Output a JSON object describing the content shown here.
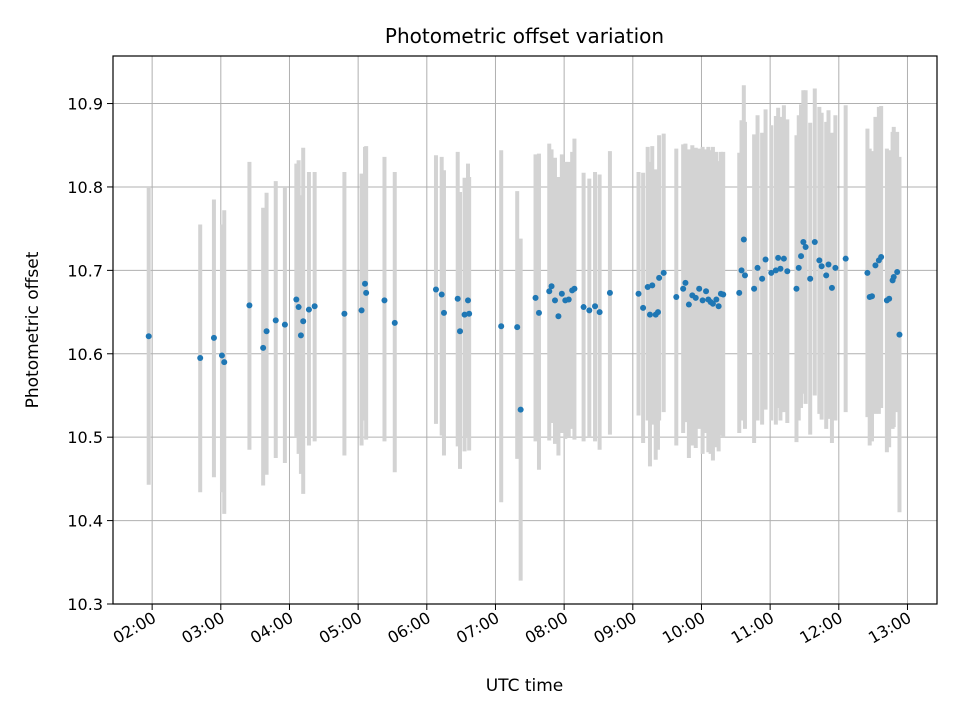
{
  "chart_data": {
    "type": "scatter",
    "title": "Photometric offset variation",
    "xlabel": "UTC time",
    "ylabel": "Photometric offset",
    "ylim": [
      10.3,
      10.957
    ],
    "xlim_hours": [
      1.43,
      13.43
    ],
    "x_tick_labels": [
      "02:00",
      "03:00",
      "04:00",
      "05:00",
      "06:00",
      "07:00",
      "08:00",
      "09:00",
      "10:00",
      "11:00",
      "12:00",
      "13:00"
    ],
    "y_tick_labels": [
      "10.3",
      "10.4",
      "10.5",
      "10.6",
      "10.7",
      "10.8",
      "10.9"
    ],
    "grid": true,
    "marker_color": "#1f77b4",
    "errorbar_color": "#d3d3d3",
    "points": [
      [
        "01:57",
        10.621,
        10.443,
        10.8
      ],
      [
        "02:42",
        10.595,
        10.434,
        10.755
      ],
      [
        "02:54",
        10.619,
        10.452,
        10.785
      ],
      [
        "03:01",
        10.598,
        10.434,
        10.755
      ],
      [
        "03:03",
        10.59,
        10.408,
        10.772
      ],
      [
        "03:25",
        10.658,
        10.485,
        10.83
      ],
      [
        "03:37",
        10.607,
        10.442,
        10.775
      ],
      [
        "03:40",
        10.627,
        10.455,
        10.793
      ],
      [
        "03:48",
        10.64,
        10.475,
        10.807
      ],
      [
        "03:56",
        10.635,
        10.469,
        10.8
      ],
      [
        "04:06",
        10.665,
        10.5,
        10.828
      ],
      [
        "04:08",
        10.656,
        10.48,
        10.832
      ],
      [
        "04:10",
        10.622,
        10.456,
        10.79
      ],
      [
        "04:12",
        10.639,
        10.432,
        10.847
      ],
      [
        "04:17",
        10.653,
        10.49,
        10.818
      ],
      [
        "04:22",
        10.657,
        10.495,
        10.818
      ],
      [
        "04:48",
        10.648,
        10.478,
        10.818
      ],
      [
        "05:03",
        10.652,
        10.49,
        10.816
      ],
      [
        "05:06",
        10.684,
        10.52,
        10.848
      ],
      [
        "05:07",
        10.673,
        10.497,
        10.849
      ],
      [
        "05:23",
        10.664,
        10.495,
        10.836
      ],
      [
        "05:32",
        10.637,
        10.458,
        10.818
      ],
      [
        "06:08",
        10.677,
        10.516,
        10.838
      ],
      [
        "06:13",
        10.671,
        10.502,
        10.836
      ],
      [
        "06:15",
        10.649,
        10.478,
        10.82
      ],
      [
        "06:27",
        10.666,
        10.489,
        10.842
      ],
      [
        "06:29",
        10.627,
        10.462,
        10.794
      ],
      [
        "06:33",
        10.647,
        10.483,
        10.811
      ],
      [
        "06:36",
        10.664,
        10.5,
        10.828
      ],
      [
        "06:37",
        10.648,
        10.484,
        10.812
      ],
      [
        "07:05",
        10.633,
        10.422,
        10.844
      ],
      [
        "07:19",
        10.632,
        10.474,
        10.795
      ],
      [
        "07:22",
        10.533,
        10.328,
        10.738
      ],
      [
        "07:35",
        10.667,
        10.495,
        10.839
      ],
      [
        "07:38",
        10.649,
        10.461,
        10.84
      ],
      [
        "07:47",
        10.675,
        10.496,
        10.852
      ],
      [
        "07:49",
        10.681,
        10.517,
        10.845
      ],
      [
        "07:52",
        10.664,
        10.492,
        10.835
      ],
      [
        "07:55",
        10.645,
        10.478,
        10.812
      ],
      [
        "07:58",
        10.672,
        10.505,
        10.839
      ],
      [
        "08:01",
        10.664,
        10.498,
        10.83
      ],
      [
        "08:04",
        10.665,
        10.5,
        10.83
      ],
      [
        "08:07",
        10.676,
        10.51,
        10.842
      ],
      [
        "08:09",
        10.678,
        10.497,
        10.858
      ],
      [
        "08:17",
        10.656,
        10.495,
        10.817
      ],
      [
        "08:22",
        10.652,
        10.5,
        10.81
      ],
      [
        "08:27",
        10.657,
        10.495,
        10.818
      ],
      [
        "08:31",
        10.65,
        10.485,
        10.815
      ],
      [
        "08:40",
        10.673,
        10.503,
        10.843
      ],
      [
        "09:05",
        10.672,
        10.526,
        10.818
      ],
      [
        "09:09",
        10.655,
        10.493,
        10.817
      ],
      [
        "09:13",
        10.68,
        10.52,
        10.848
      ],
      [
        "09:15",
        10.647,
        10.465,
        10.83
      ],
      [
        "09:17",
        10.682,
        10.515,
        10.849
      ],
      [
        "09:20",
        10.647,
        10.473,
        10.821
      ],
      [
        "09:22",
        10.65,
        10.485,
        10.815
      ],
      [
        "09:23",
        10.691,
        10.52,
        10.862
      ],
      [
        "09:27",
        10.697,
        10.53,
        10.864
      ],
      [
        "09:38",
        10.668,
        10.49,
        10.846
      ],
      [
        "09:44",
        10.678,
        10.505,
        10.851
      ],
      [
        "09:46",
        10.685,
        10.518,
        10.852
      ],
      [
        "09:49",
        10.659,
        10.475,
        10.845
      ],
      [
        "09:52",
        10.67,
        10.49,
        10.85
      ],
      [
        "09:55",
        10.667,
        10.487,
        10.847
      ],
      [
        "09:58",
        10.678,
        10.51,
        10.846
      ],
      [
        "10:01",
        10.664,
        10.48,
        10.848
      ],
      [
        "10:04",
        10.675,
        10.505,
        10.845
      ],
      [
        "10:06",
        10.665,
        10.482,
        10.848
      ],
      [
        "10:08",
        10.662,
        10.48,
        10.844
      ],
      [
        "10:10",
        10.66,
        10.472,
        10.848
      ],
      [
        "10:13",
        10.665,
        10.488,
        10.842
      ],
      [
        "10:15",
        10.657,
        10.483,
        10.831
      ],
      [
        "10:17",
        10.672,
        10.502,
        10.842
      ],
      [
        "10:19",
        10.671,
        10.5,
        10.842
      ],
      [
        "10:33",
        10.673,
        10.505,
        10.841
      ],
      [
        "10:35",
        10.7,
        10.52,
        10.88
      ],
      [
        "10:37",
        10.737,
        10.553,
        10.922
      ],
      [
        "10:38",
        10.694,
        10.51,
        10.878
      ],
      [
        "10:46",
        10.678,
        10.493,
        10.863
      ],
      [
        "10:49",
        10.703,
        10.52,
        10.886
      ],
      [
        "10:53",
        10.69,
        10.515,
        10.865
      ],
      [
        "10:56",
        10.713,
        10.533,
        10.893
      ],
      [
        "11:01",
        10.697,
        10.52,
        10.874
      ],
      [
        "11:05",
        10.7,
        10.515,
        10.885
      ],
      [
        "11:07",
        10.715,
        10.535,
        10.895
      ],
      [
        "11:09",
        10.702,
        10.52,
        10.884
      ],
      [
        "11:12",
        10.714,
        10.53,
        10.898
      ],
      [
        "11:15",
        10.699,
        10.517,
        10.881
      ],
      [
        "11:23",
        10.678,
        10.494,
        10.862
      ],
      [
        "11:25",
        10.703,
        10.52,
        10.886
      ],
      [
        "11:27",
        10.717,
        10.535,
        10.899
      ],
      [
        "11:29",
        10.734,
        10.552,
        10.916
      ],
      [
        "11:31",
        10.728,
        10.54,
        10.916
      ],
      [
        "11:35",
        10.69,
        10.503,
        10.877
      ],
      [
        "11:39",
        10.734,
        10.55,
        10.918
      ],
      [
        "11:43",
        10.712,
        10.528,
        10.896
      ],
      [
        "11:45",
        10.705,
        10.521,
        10.889
      ],
      [
        "11:49",
        10.694,
        10.51,
        10.878
      ],
      [
        "11:51",
        10.707,
        10.522,
        10.892
      ],
      [
        "11:54",
        10.679,
        10.493,
        10.865
      ],
      [
        "11:57",
        10.703,
        10.52,
        10.886
      ],
      [
        "12:06",
        10.714,
        10.53,
        10.898
      ],
      [
        "12:25",
        10.697,
        10.524,
        10.87
      ],
      [
        "12:27",
        10.668,
        10.49,
        10.846
      ],
      [
        "12:29",
        10.669,
        10.495,
        10.843
      ],
      [
        "12:32",
        10.706,
        10.528,
        10.884
      ],
      [
        "12:35",
        10.712,
        10.528,
        10.896
      ],
      [
        "12:37",
        10.716,
        10.535,
        10.897
      ],
      [
        "12:42",
        10.664,
        10.482,
        10.846
      ],
      [
        "12:44",
        10.666,
        10.488,
        10.844
      ],
      [
        "12:47",
        10.688,
        10.51,
        10.866
      ],
      [
        "12:48",
        10.692,
        10.512,
        10.872
      ],
      [
        "12:51",
        10.698,
        10.53,
        10.866
      ],
      [
        "12:53",
        10.623,
        10.41,
        10.836
      ]
    ]
  }
}
